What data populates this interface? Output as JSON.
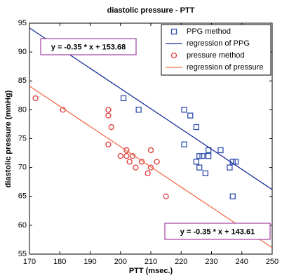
{
  "chart_data": {
    "type": "scatter",
    "title": "diastolic pressure - PTT",
    "x_label": "PTT (msec.)",
    "y_label": "diastolic pressure (mmHg)",
    "xlim": [
      170,
      250
    ],
    "xticks": [
      170,
      180,
      190,
      200,
      210,
      220,
      230,
      240,
      250
    ],
    "ylim": [
      55,
      95
    ],
    "yticks": [
      55,
      60,
      65,
      70,
      75,
      80,
      85,
      90,
      95
    ],
    "grid": false,
    "legend": "upper right",
    "series": [
      {
        "name": "PPG method",
        "style": "square",
        "color": "#2f4fb0",
        "x": [
          201,
          206,
          221,
          223,
          225,
          221,
          225,
          226,
          226,
          227,
          228,
          229,
          229,
          233,
          236,
          237,
          238,
          237
        ],
        "values": [
          82,
          80,
          80,
          79,
          77,
          74,
          71,
          70,
          72,
          72,
          69,
          72,
          73,
          73,
          70,
          71,
          71,
          65
        ]
      },
      {
        "name": "regression of PPG",
        "style": "line",
        "color": "#1a2a9a",
        "x": [
          170,
          250
        ],
        "values": [
          94.18,
          66.18
        ]
      },
      {
        "name": "pressure method",
        "style": "circle",
        "color": "#e03a3a",
        "x": [
          172,
          181,
          196,
          196,
          197,
          196,
          200,
          202,
          202,
          203,
          204,
          205,
          207,
          209,
          210,
          210,
          212,
          215
        ],
        "values": [
          82,
          80,
          80,
          79,
          77,
          74,
          72,
          73,
          72,
          71,
          72,
          70,
          71,
          69,
          70,
          73,
          71,
          65
        ]
      },
      {
        "name": "regression of pressure",
        "style": "line",
        "color": "#f0704a",
        "x": [
          170,
          250
        ],
        "values": [
          84.11,
          56.11
        ]
      }
    ],
    "annotations": [
      "y = -0.35 * x + 153.68",
      "y = -0.35 * x + 143.61"
    ]
  }
}
